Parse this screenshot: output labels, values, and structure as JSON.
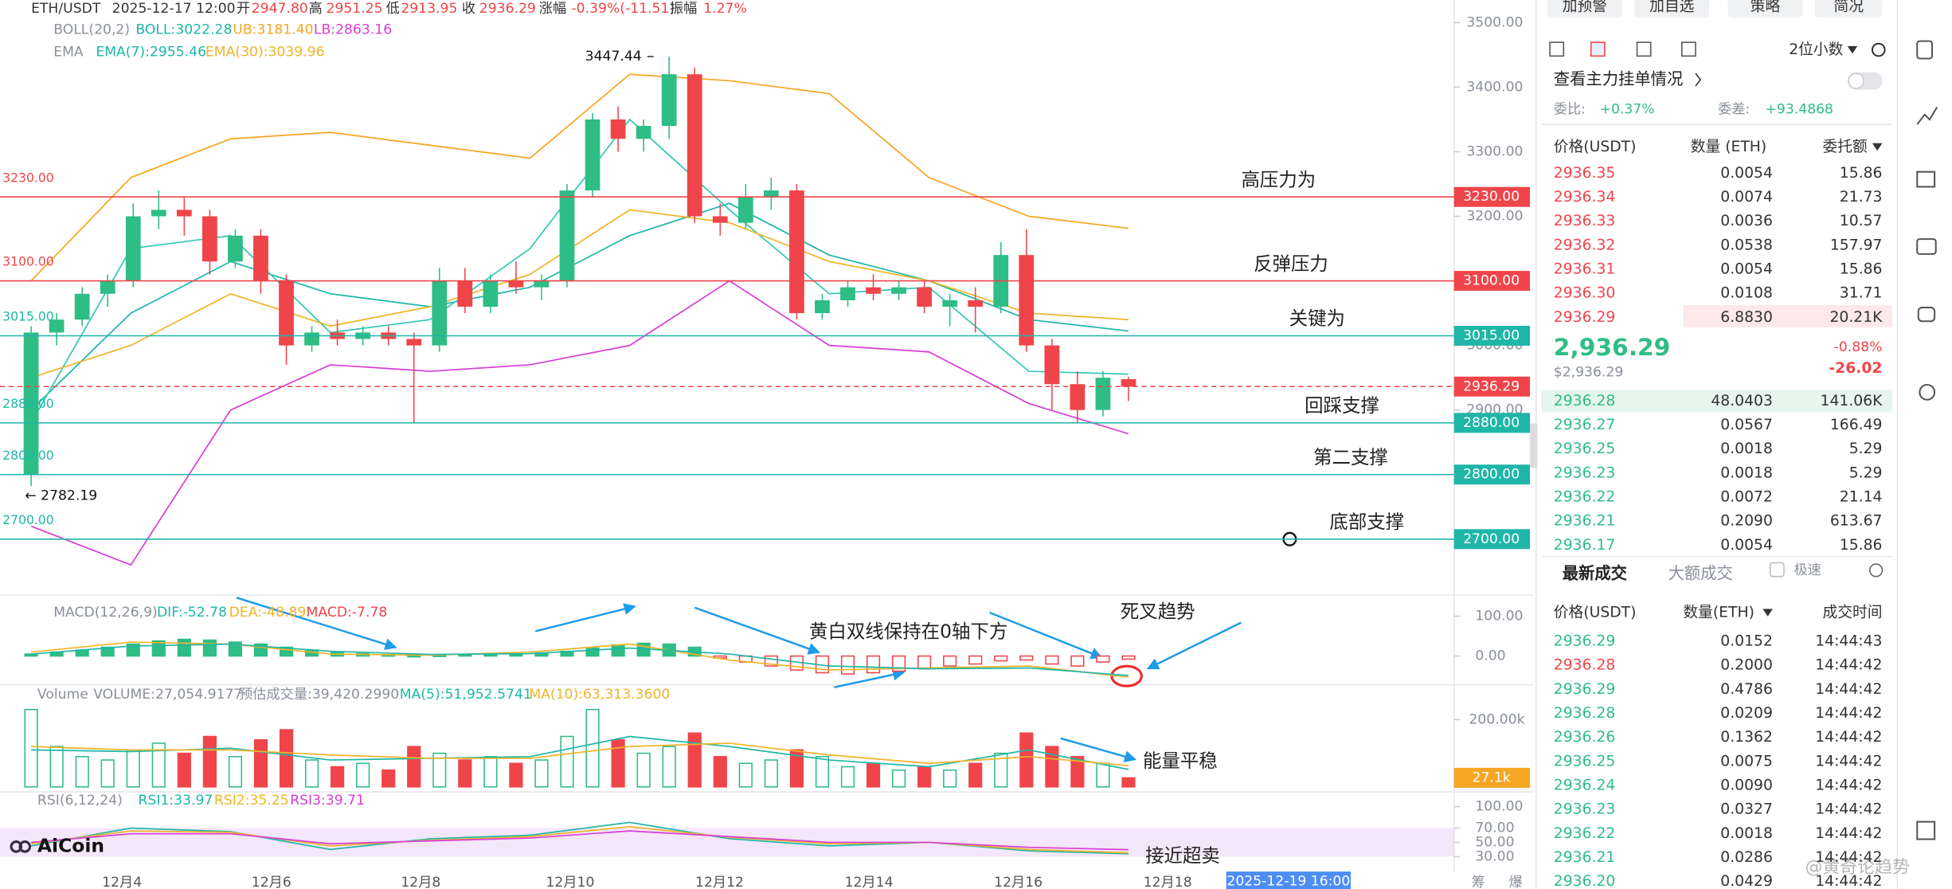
{
  "header": {
    "symbol": "ETH/USDT",
    "time": "2025-12-17 12:00",
    "open_label": "开",
    "open": "2947.80",
    "high_label": "高",
    "high": "2951.25",
    "low_label": "低",
    "low": "2913.95",
    "close_label": "收",
    "close": "2936.29",
    "change_label": "涨幅",
    "change": "-0.39%(-11.51)",
    "amplitude_label": "振幅",
    "amplitude": "1.27%"
  },
  "price_chart": {
    "type": "candlestick",
    "boll_label": "BOLL(20,2)",
    "boll_mid": "BOLL:3022.28",
    "boll_ub": "UB:3181.40",
    "boll_lb": "LB:2863.16",
    "ema_label": "EMA",
    "ema7": "EMA(7):2955.46",
    "ema30": "EMA(30):3039.96",
    "ylim": [
      2619,
      3535
    ],
    "yticks": [
      {
        "value": 3500,
        "label": "3500.00"
      },
      {
        "value": 3400,
        "label": "3400.00"
      },
      {
        "value": 3300,
        "label": "3300.00"
      },
      {
        "value": 3200,
        "label": "3200.00"
      },
      {
        "value": 3100,
        "label": "3100.00"
      },
      {
        "value": 3000,
        "label": "3000.00"
      },
      {
        "value": 2900,
        "label": "2900.00"
      },
      {
        "value": 2800,
        "label": "2800.00"
      },
      {
        "value": 2700,
        "label": "2700.00"
      }
    ],
    "up_color": "#2ebd85",
    "down_color": "#ef454a",
    "candles": [
      [
        2800,
        3030,
        2782.19,
        3020
      ],
      [
        3020,
        3050,
        3000,
        3040
      ],
      [
        3040,
        3090,
        3030,
        3080
      ],
      [
        3080,
        3110,
        3060,
        3100
      ],
      [
        3100,
        3220,
        3090,
        3200
      ],
      [
        3200,
        3240,
        3180,
        3210
      ],
      [
        3210,
        3230,
        3170,
        3200
      ],
      [
        3200,
        3210,
        3110,
        3130
      ],
      [
        3130,
        3180,
        3120,
        3170
      ],
      [
        3170,
        3180,
        3080,
        3100
      ],
      [
        3100,
        3110,
        2970,
        3000
      ],
      [
        3000,
        3030,
        2990,
        3020
      ],
      [
        3020,
        3040,
        3000,
        3010
      ],
      [
        3010,
        3030,
        3000,
        3020
      ],
      [
        3020,
        3030,
        3000,
        3010
      ],
      [
        3010,
        3020,
        2880,
        3000
      ],
      [
        3000,
        3120,
        2990,
        3100
      ],
      [
        3100,
        3120,
        3050,
        3060
      ],
      [
        3060,
        3110,
        3050,
        3100
      ],
      [
        3100,
        3130,
        3080,
        3090
      ],
      [
        3090,
        3110,
        3070,
        3100
      ],
      [
        3100,
        3250,
        3090,
        3240
      ],
      [
        3240,
        3360,
        3230,
        3350
      ],
      [
        3350,
        3370,
        3300,
        3320
      ],
      [
        3320,
        3350,
        3300,
        3340
      ],
      [
        3340,
        3447.44,
        3320,
        3420
      ],
      [
        3420,
        3430,
        3190,
        3200
      ],
      [
        3200,
        3220,
        3170,
        3190
      ],
      [
        3190,
        3250,
        3180,
        3230
      ],
      [
        3230,
        3260,
        3210,
        3240
      ],
      [
        3240,
        3250,
        3040,
        3050
      ],
      [
        3050,
        3080,
        3040,
        3070
      ],
      [
        3070,
        3100,
        3060,
        3090
      ],
      [
        3090,
        3110,
        3070,
        3080
      ],
      [
        3080,
        3100,
        3070,
        3090
      ],
      [
        3090,
        3100,
        3050,
        3060
      ],
      [
        3060,
        3080,
        3030,
        3070
      ],
      [
        3070,
        3090,
        3020,
        3060
      ],
      [
        3060,
        3160,
        3050,
        3140
      ],
      [
        3140,
        3180,
        2990,
        3000
      ],
      [
        3000,
        3010,
        2900,
        2940
      ],
      [
        2940,
        2960,
        2880,
        2900
      ],
      [
        2900,
        2960,
        2890,
        2950
      ],
      [
        2947.8,
        2951.25,
        2913.95,
        2936.29
      ]
    ],
    "lines": [
      {
        "color": "#f5a623",
        "values": [
          3100,
          3260,
          3320,
          3330,
          3310,
          3290,
          3420,
          3410,
          3390,
          3260,
          3200,
          3181.4
        ]
      },
      {
        "color": "#1fb6a8",
        "values": [
          2900,
          3050,
          3130,
          3080,
          3060,
          3090,
          3170,
          3220,
          3140,
          3100,
          3040,
          3022.28
        ]
      },
      {
        "color": "#d63fd6",
        "values": [
          2720,
          2660,
          2900,
          2970,
          2960,
          2970,
          3000,
          3100,
          3000,
          2990,
          2910,
          2863.16
        ]
      },
      {
        "color": "#35c7b5",
        "values": [
          2880,
          3150,
          3170,
          3020,
          3040,
          3150,
          3350,
          3210,
          3080,
          3090,
          2960,
          2955.46
        ]
      },
      {
        "color": "#f0b429",
        "values": [
          2950,
          3000,
          3080,
          3030,
          3060,
          3110,
          3210,
          3190,
          3130,
          3100,
          3050,
          3039.96
        ]
      }
    ],
    "high_marker": {
      "value": 3447.44,
      "label": "3447.44"
    },
    "low_marker": {
      "value": 2782.19,
      "label": "← 2782.19"
    },
    "levels": [
      {
        "value": 3230,
        "label": "3230.00",
        "note": "高压力为",
        "color": "#ef454a"
      },
      {
        "value": 3100,
        "label": "3100.00",
        "note": "反弹压力",
        "color": "#ef454a"
      },
      {
        "value": 3015,
        "label": "3015.00",
        "note": "关键为",
        "color": "#1fb6a8"
      },
      {
        "value": 2880,
        "label": "2880.00",
        "note": "回踩支撑",
        "color": "#1fb6a8"
      },
      {
        "value": 2800,
        "label": "2800.00",
        "note": "第二支撑",
        "color": "#1fb6a8"
      },
      {
        "value": 2700,
        "label": "2700.00",
        "note": "底部支撑",
        "color": "#1fb6a8"
      }
    ],
    "current": {
      "value": 2936.29,
      "label": "2936.29",
      "color": "#ef454a"
    }
  },
  "macd": {
    "type": "bar",
    "label": "MACD(12,26,9)",
    "dif_label": "DIF:-52.78",
    "dea_label": "DEA:-48.89",
    "macd_label": "MACD:-7.78",
    "ylim": [
      -66,
      131
    ],
    "yticks": [
      {
        "value": 100,
        "label": "100.00"
      },
      {
        "value": 0,
        "label": "0.00"
      }
    ],
    "histogram": [
      5,
      10,
      15,
      22,
      30,
      38,
      42,
      40,
      35,
      30,
      22,
      15,
      10,
      6,
      3,
      1,
      2,
      4,
      5,
      6,
      8,
      12,
      20,
      28,
      32,
      30,
      22,
      -5,
      -15,
      -25,
      -35,
      -42,
      -45,
      -42,
      -38,
      -32,
      -25,
      -20,
      -12,
      -10,
      -20,
      -25,
      -15,
      -7.78
    ],
    "lines": [
      {
        "color": "#f0b429",
        "values": [
          10,
          35,
          30,
          5,
          2,
          10,
          30,
          -10,
          -35,
          -30,
          -25,
          -52.78
        ]
      },
      {
        "color": "#1fb6a8",
        "values": [
          5,
          25,
          30,
          12,
          4,
          6,
          20,
          5,
          -25,
          -32,
          -30,
          -48.89
        ]
      }
    ],
    "annotations": [
      "黄白双线保持在0轴下方",
      "死叉趋势"
    ]
  },
  "volume": {
    "type": "bar",
    "label": "Volume",
    "volume": "VOLUME:27,054.9177",
    "estimate": "预估成交量:39,420.2990",
    "ma5": "MA(5):51,952.5741",
    "ma10": "MA(10):63,313.3600",
    "ylim": [
      0,
      248000
    ],
    "yticks": [
      {
        "value": 200000,
        "label": "200.00k"
      }
    ],
    "values": [
      230000,
      120000,
      90000,
      80000,
      110000,
      130000,
      100000,
      150000,
      90000,
      140000,
      170000,
      80000,
      60000,
      70000,
      50000,
      120000,
      100000,
      80000,
      90000,
      70000,
      80000,
      150000,
      230000,
      140000,
      100000,
      120000,
      160000,
      90000,
      70000,
      80000,
      110000,
      90000,
      60000,
      70000,
      50000,
      60000,
      50000,
      70000,
      100000,
      160000,
      120000,
      90000,
      70000,
      27054.9177
    ],
    "lines": [
      {
        "color": "#1fb6a8",
        "values": [
          110000,
          105000,
          115000,
          80000,
          85000,
          90000,
          150000,
          120000,
          80000,
          60000,
          110000,
          51952.5741
        ]
      },
      {
        "color": "#f0b429",
        "values": [
          120000,
          110000,
          110000,
          95000,
          85000,
          85000,
          120000,
          130000,
          95000,
          70000,
          90000,
          63313.36
        ]
      }
    ],
    "marker": {
      "value": 27054.9177,
      "label": "27.1k"
    },
    "annotation": "能量平稳"
  },
  "rsi": {
    "type": "line",
    "label": "RSI(6,12,24)",
    "rsi1": "RSI1:33.97",
    "rsi2": "RSI2:35.25",
    "rsi3": "RSI3:39.71",
    "ylim": [
      23,
      105
    ],
    "band": [
      30,
      70
    ],
    "yticks": [
      {
        "value": 100,
        "label": "100.00"
      },
      {
        "value": 70,
        "label": "70.00"
      },
      {
        "value": 50,
        "label": "50.00"
      },
      {
        "value": 30,
        "label": "30.00"
      }
    ],
    "lines": [
      {
        "color": "#1fb6a8",
        "values": [
          45,
          70,
          65,
          40,
          55,
          60,
          78,
          55,
          45,
          50,
          38,
          33.97
        ]
      },
      {
        "color": "#f0b429",
        "values": [
          48,
          66,
          64,
          45,
          53,
          58,
          72,
          57,
          48,
          50,
          40,
          35.25
        ]
      },
      {
        "color": "#d63fd6",
        "values": [
          50,
          62,
          62,
          48,
          52,
          56,
          66,
          58,
          50,
          50,
          43,
          39.71
        ]
      }
    ],
    "annotation": "接近超卖",
    "logo": "AiCoin"
  },
  "x_axis": {
    "labels": [
      "12月4",
      "12月6",
      "12月8",
      "12月10",
      "12月12",
      "12月14",
      "12月16",
      "12月18"
    ],
    "crosshair": "2025-12-19 16:00",
    "corner": [
      "筹",
      "爆"
    ]
  },
  "watermark": "@黄奇论趋势",
  "toolbar": {
    "buttons": [
      "加预警",
      "加自选",
      "策略",
      "简况"
    ],
    "decimals": "2位小数"
  },
  "order_book": {
    "main_orders": "查看主力挂单情况",
    "ratio_label": "委比:",
    "ratio": "+0.37%",
    "diff_label": "委差:",
    "diff": "+93.4868",
    "columns": [
      "价格(USDT)",
      "数量 (ETH)",
      "委托额"
    ],
    "asks": [
      [
        "2936.35",
        "0.0054",
        "15.86"
      ],
      [
        "2936.34",
        "0.0074",
        "21.73"
      ],
      [
        "2936.33",
        "0.0036",
        "10.57"
      ],
      [
        "2936.32",
        "0.0538",
        "157.97"
      ],
      [
        "2936.31",
        "0.0054",
        "15.86"
      ],
      [
        "2936.30",
        "0.0108",
        "31.71"
      ],
      [
        "2936.29",
        "6.8830",
        "20.21K"
      ]
    ],
    "last_price": "2,936.29",
    "last_price_usd": "$2,936.29",
    "change_pct": "-0.88%",
    "change": "-26.02",
    "bids": [
      [
        "2936.28",
        "48.0403",
        "141.06K"
      ],
      [
        "2936.27",
        "0.0567",
        "166.49"
      ],
      [
        "2936.25",
        "0.0018",
        "5.29"
      ],
      [
        "2936.23",
        "0.0018",
        "5.29"
      ],
      [
        "2936.22",
        "0.0072",
        "21.14"
      ],
      [
        "2936.21",
        "0.2090",
        "613.67"
      ],
      [
        "2936.17",
        "0.0054",
        "15.86"
      ]
    ]
  },
  "trades": {
    "tabs": [
      "最新成交",
      "大额成交"
    ],
    "fast": "极速",
    "columns": [
      "价格(USDT)",
      "数量(ETH)",
      "成交时间"
    ],
    "rows": [
      [
        "2936.29",
        "0.0152",
        "14:44:43"
      ],
      [
        "2936.28",
        "0.2000",
        "14:44:42"
      ],
      [
        "2936.29",
        "0.4786",
        "14:44:42"
      ],
      [
        "2936.28",
        "0.0209",
        "14:44:42"
      ],
      [
        "2936.26",
        "0.1362",
        "14:44:42"
      ],
      [
        "2936.25",
        "0.0075",
        "14:44:42"
      ],
      [
        "2936.24",
        "0.0090",
        "14:44:42"
      ],
      [
        "2936.23",
        "0.0327",
        "14:44:42"
      ],
      [
        "2936.22",
        "0.0018",
        "14:44:42"
      ],
      [
        "2936.21",
        "0.0286",
        "14:44:42"
      ],
      [
        "2936.20",
        "0.0429",
        "14:44:42"
      ]
    ],
    "row_colors": [
      "#2ebd85",
      "#ef454a",
      "#2ebd85",
      "#2ebd85",
      "#2ebd85",
      "#2ebd85",
      "#2ebd85",
      "#2ebd85",
      "#2ebd85",
      "#2ebd85",
      "#2ebd85"
    ]
  }
}
